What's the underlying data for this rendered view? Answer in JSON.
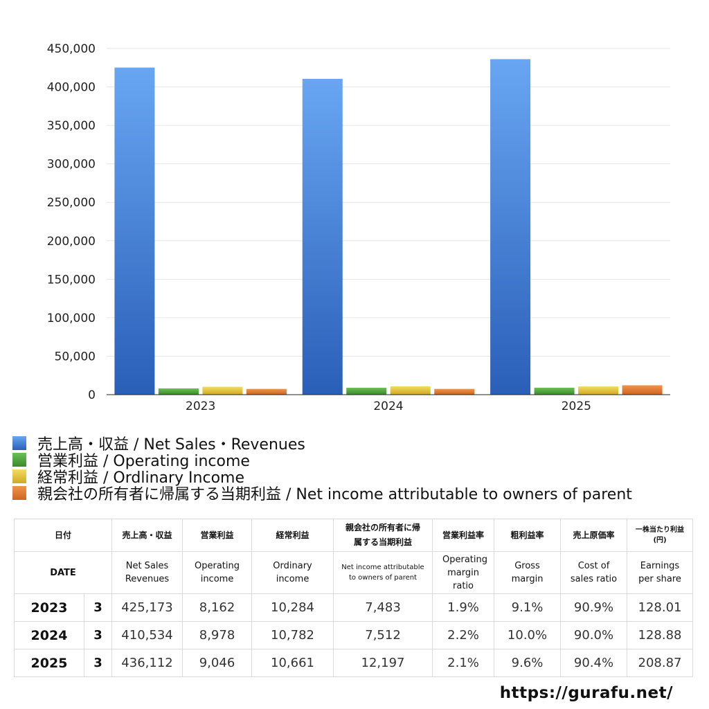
{
  "chart_data": {
    "type": "bar",
    "categories": [
      "2023",
      "2024",
      "2025"
    ],
    "series": [
      {
        "name": "売上高・収益 / Net Sales・Revenues",
        "values": [
          425173,
          410534,
          436112
        ],
        "color": "#3b7ae0"
      },
      {
        "name": "営業利益 / Operating income",
        "values": [
          8162,
          8978,
          9046
        ],
        "color": "#4a9a3a"
      },
      {
        "name": "経常利益 / Ordlinary Income",
        "values": [
          10284,
          10782,
          10661
        ],
        "color": "#e0c43a"
      },
      {
        "name": "親会社の所有者に帰属する当期利益 / Net income attributable to owners of parent",
        "values": [
          7483,
          7512,
          12197
        ],
        "color": "#e07a30"
      }
    ],
    "ylim": [
      0,
      450000
    ],
    "yticks": [
      "0",
      "50,000",
      "100,000",
      "150,000",
      "200,000",
      "250,000",
      "300,000",
      "350,000",
      "400,000",
      "450,000"
    ],
    "grid": true,
    "legend": "bottom-left"
  },
  "table": {
    "headers_jp": [
      "日付",
      "売上高・収益",
      "営業利益",
      "経常利益",
      "親会社の所有者に帰属する当期利益",
      "営業利益率",
      "粗利益率",
      "売上原価率",
      "一株当たり利益(円)"
    ],
    "headers_en": [
      "DATE",
      "Net Sales Revenues",
      "Operating income",
      "Ordinary income",
      "Net income attributable to owners of parent",
      "Operating margin ratio",
      "Gross margin",
      "Cost of sales ratio",
      "Earnings per share"
    ],
    "rows": [
      {
        "year": "2023",
        "month": "3",
        "sales": "425,173",
        "op": "8,162",
        "ord": "10,284",
        "net": "7,483",
        "opm": "1.9%",
        "gm": "9.1%",
        "cos": "90.9%",
        "eps": "128.01"
      },
      {
        "year": "2024",
        "month": "3",
        "sales": "410,534",
        "op": "8,978",
        "ord": "10,782",
        "net": "7,512",
        "opm": "2.2%",
        "gm": "10.0%",
        "cos": "90.0%",
        "eps": "128.88"
      },
      {
        "year": "2025",
        "month": "3",
        "sales": "436,112",
        "op": "9,046",
        "ord": "10,661",
        "net": "12,197",
        "opm": "2.1%",
        "gm": "9.6%",
        "cos": "90.4%",
        "eps": "208.87"
      }
    ]
  },
  "site_url": "https://gurafu.net/"
}
